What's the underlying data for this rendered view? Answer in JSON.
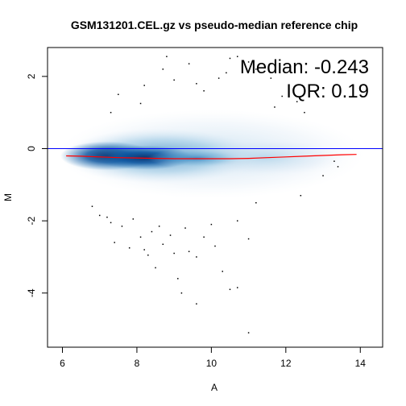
{
  "chart_data": {
    "type": "scatter",
    "title": "GSM131201.CEL.gz vs pseudo-median reference chip",
    "xlabel": "A",
    "ylabel": "M",
    "xlim": [
      5.6,
      14.6
    ],
    "ylim": [
      -5.5,
      2.8
    ],
    "xticks": [
      6,
      8,
      10,
      12,
      14
    ],
    "yticks": [
      -4,
      -2,
      0,
      2
    ],
    "grid": false,
    "annotations": [
      "Median: -0.243",
      "IQR: 0.19"
    ],
    "reference_line": {
      "y": 0,
      "color": "#0000ff"
    },
    "loess_curve": {
      "color": "#ff0000",
      "x": [
        6.1,
        6.5,
        7.0,
        7.5,
        8.0,
        8.5,
        9.0,
        9.5,
        10.0,
        10.5,
        11.0,
        11.5,
        12.0,
        12.5,
        13.0,
        13.5,
        13.9
      ],
      "y": [
        -0.2,
        -0.21,
        -0.23,
        -0.25,
        -0.26,
        -0.27,
        -0.28,
        -0.28,
        -0.28,
        -0.28,
        -0.27,
        -0.25,
        -0.23,
        -0.21,
        -0.19,
        -0.17,
        -0.16
      ]
    },
    "density_color": "#08519c",
    "outliers": {
      "x": [
        8.8,
        9.4,
        8.7,
        10.5,
        10.7,
        11.0,
        8.2,
        9.0,
        9.6,
        10.2,
        10.4,
        11.2,
        11.6,
        7.5,
        8.1,
        9.8,
        7.3,
        12.5,
        11.7,
        12.3,
        11.9,
        13.3,
        13.4,
        13.0,
        12.4,
        6.8,
        7.0,
        7.2,
        7.3,
        7.6,
        7.9,
        8.1,
        8.4,
        8.6,
        7.4,
        7.8,
        8.2,
        8.7,
        8.9,
        9.3,
        9.8,
        10.0,
        9.0,
        9.4,
        10.1,
        10.7,
        11.2,
        11.0,
        8.3,
        8.5,
        9.6,
        10.3,
        9.2,
        9.6,
        10.7,
        9.1,
        10.5,
        11.0
      ],
      "y": [
        2.55,
        2.35,
        2.2,
        2.5,
        2.55,
        2.4,
        1.75,
        1.9,
        1.8,
        1.95,
        2.1,
        2.2,
        1.95,
        1.5,
        1.25,
        1.6,
        1.0,
        1.0,
        1.15,
        1.3,
        1.45,
        -0.35,
        -0.5,
        -0.75,
        -1.3,
        -1.6,
        -1.85,
        -1.9,
        -2.05,
        -2.15,
        -1.95,
        -2.45,
        -2.3,
        -2.15,
        -2.6,
        -2.75,
        -2.8,
        -2.65,
        -2.4,
        -2.2,
        -2.45,
        -2.1,
        -2.9,
        -2.85,
        -2.7,
        -2.0,
        -1.5,
        -2.5,
        -2.95,
        -3.3,
        -3.0,
        -3.4,
        -4.0,
        -4.3,
        -3.85,
        -3.6,
        -3.9,
        -5.1
      ]
    }
  }
}
